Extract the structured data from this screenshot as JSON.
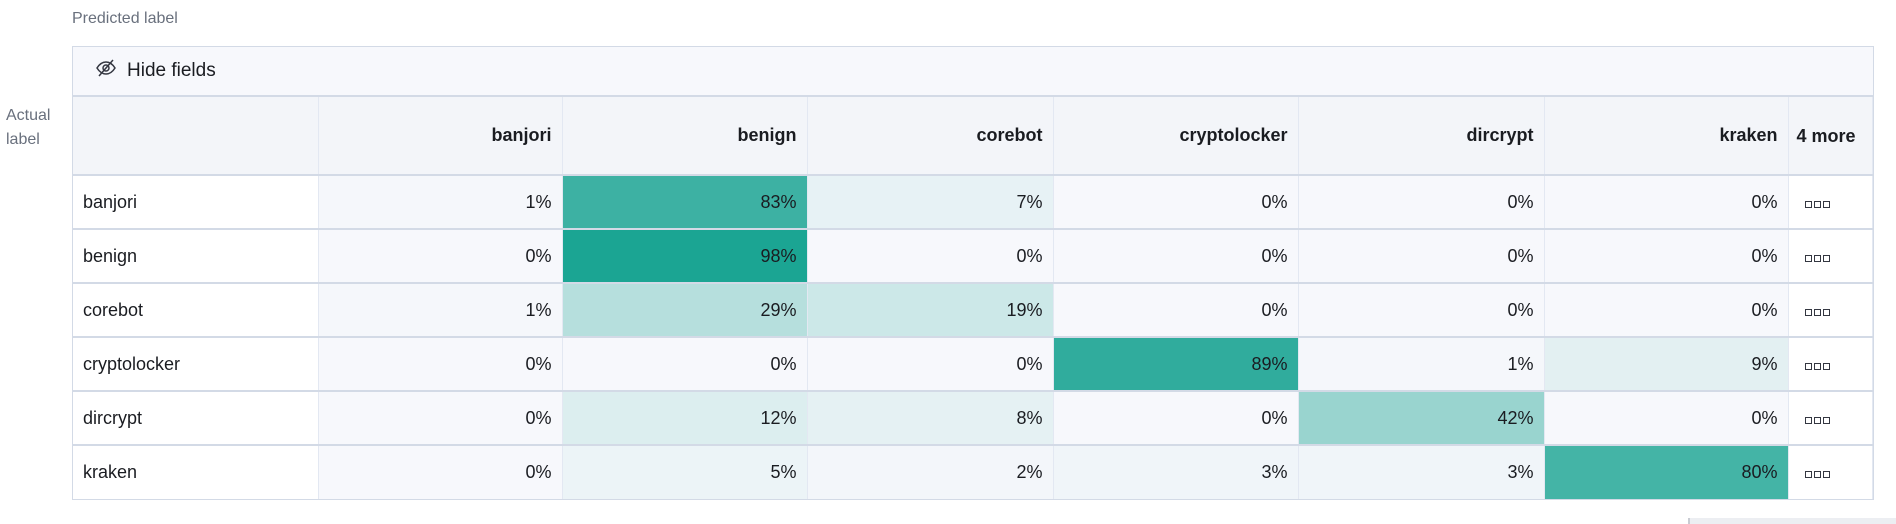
{
  "axis_labels": {
    "predicted": "Predicted label",
    "actual": "Actual label"
  },
  "toolbar": {
    "hide_fields_label": "Hide fields",
    "hide_fields_icon": "eye-closed-icon"
  },
  "columns": [
    "banjori",
    "benign",
    "corebot",
    "cryptolocker",
    "dircrypt",
    "kraken"
  ],
  "more_columns_label": "4 more",
  "rows": [
    {
      "label": "banjori",
      "values": [
        "1%",
        "83%",
        "7%",
        "0%",
        "0%",
        "0%"
      ]
    },
    {
      "label": "benign",
      "values": [
        "0%",
        "98%",
        "0%",
        "0%",
        "0%",
        "0%"
      ]
    },
    {
      "label": "corebot",
      "values": [
        "1%",
        "29%",
        "19%",
        "0%",
        "0%",
        "0%"
      ]
    },
    {
      "label": "cryptolocker",
      "values": [
        "0%",
        "0%",
        "0%",
        "89%",
        "1%",
        "9%"
      ]
    },
    {
      "label": "dircrypt",
      "values": [
        "0%",
        "12%",
        "8%",
        "0%",
        "42%",
        "0%"
      ]
    },
    {
      "label": "kraken",
      "values": [
        "0%",
        "5%",
        "2%",
        "3%",
        "3%",
        "80%"
      ]
    }
  ],
  "colors": {
    "low": "#f7f8fc",
    "high": "#17a391"
  }
}
